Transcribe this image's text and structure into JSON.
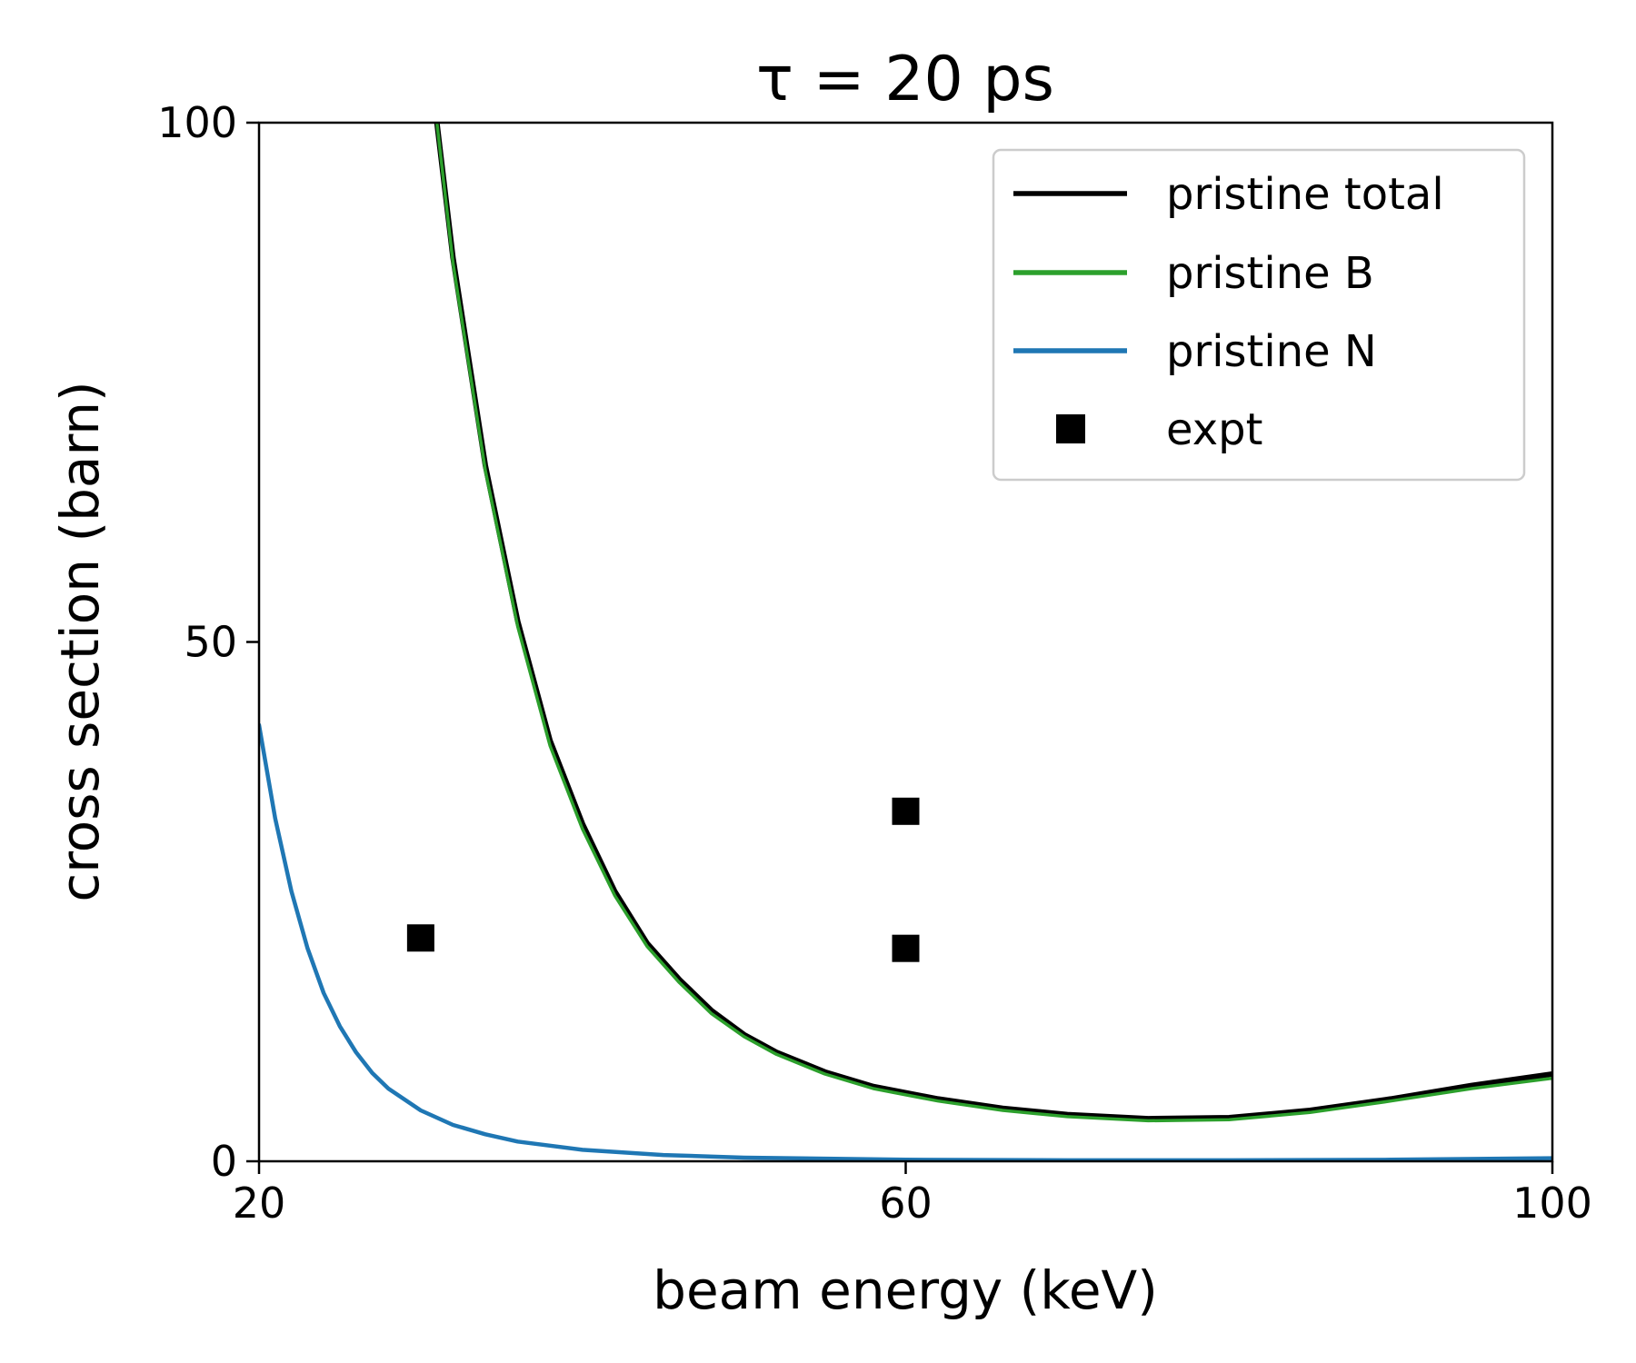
{
  "chart_data": {
    "type": "line",
    "title": "τ = 20 ps",
    "xlabel": "beam energy (keV)",
    "ylabel": "cross section (barn)",
    "xlim": [
      20,
      100
    ],
    "ylim": [
      0,
      100
    ],
    "xticks": [
      20,
      60,
      100
    ],
    "yticks": [
      0,
      50,
      100
    ],
    "grid": false,
    "legend": {
      "position": "top-right",
      "entries": [
        {
          "label": "pristine total",
          "color": "#000000",
          "kind": "line"
        },
        {
          "label": "pristine B",
          "color": "#2ca02c",
          "kind": "line"
        },
        {
          "label": "pristine N",
          "color": "#1f77b4",
          "kind": "line"
        },
        {
          "label": "expt",
          "color": "#000000",
          "kind": "square"
        }
      ]
    },
    "series": [
      {
        "name": "pristine total",
        "color": "#000000",
        "x": [
          31,
          32,
          34,
          36,
          38,
          40,
          42,
          44,
          46,
          48,
          50,
          52,
          55,
          58,
          62,
          66,
          70,
          75,
          80,
          85,
          90,
          95,
          100
        ],
        "y": [
          100,
          87,
          67,
          52,
          40.5,
          32.5,
          26,
          21,
          17.5,
          14.5,
          12.2,
          10.5,
          8.6,
          7.2,
          6.0,
          5.1,
          4.5,
          4.1,
          4.2,
          4.9,
          6.0,
          7.3,
          8.4
        ]
      },
      {
        "name": "pristine B",
        "color": "#2ca02c",
        "x": [
          31,
          32,
          34,
          36,
          38,
          40,
          42,
          44,
          46,
          48,
          50,
          52,
          55,
          58,
          62,
          66,
          70,
          75,
          80,
          85,
          90,
          95,
          100
        ],
        "y": [
          100,
          86.5,
          66.5,
          51.5,
          40,
          32,
          25.6,
          20.7,
          17.2,
          14.2,
          12.0,
          10.3,
          8.4,
          7.0,
          5.8,
          4.9,
          4.3,
          3.9,
          4.0,
          4.7,
          5.8,
          7.0,
          8.0
        ]
      },
      {
        "name": "pristine N",
        "color": "#1f77b4",
        "x": [
          20,
          21,
          22,
          23,
          24,
          25,
          26,
          27,
          28,
          30,
          32,
          34,
          36,
          40,
          45,
          50,
          60,
          70,
          80,
          90,
          100
        ],
        "y": [
          42,
          33,
          26,
          20.5,
          16.2,
          13,
          10.5,
          8.5,
          7.0,
          4.9,
          3.5,
          2.6,
          1.9,
          1.1,
          0.6,
          0.35,
          0.15,
          0.1,
          0.1,
          0.15,
          0.3
        ]
      }
    ],
    "points": {
      "name": "expt",
      "color": "#000000",
      "x": [
        30,
        60,
        60
      ],
      "y": [
        21.5,
        33.7,
        20.5
      ]
    }
  }
}
